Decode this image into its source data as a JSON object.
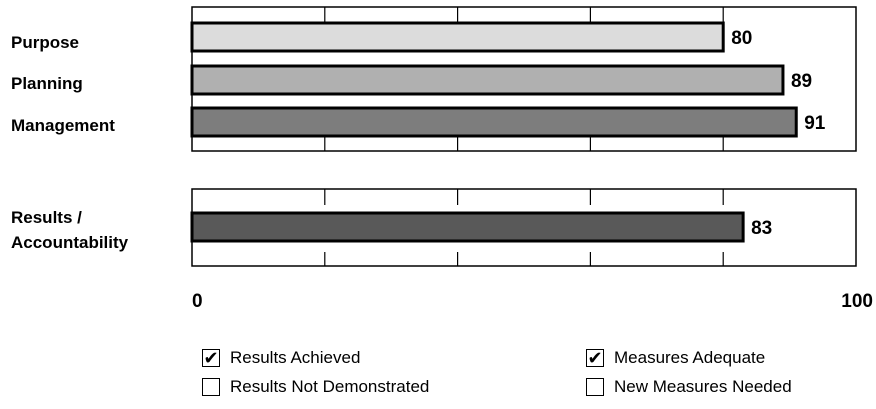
{
  "chart_data": {
    "type": "bar",
    "orientation": "horizontal",
    "xlim": [
      0,
      100
    ],
    "grid": true,
    "tick_labels": [
      "0",
      "100"
    ],
    "groups": [
      {
        "categories": [
          "Purpose",
          "Planning",
          "Management"
        ],
        "values": [
          80,
          89,
          91
        ],
        "colors": [
          "#dcdcdc",
          "#b0b0b0",
          "#7d7d7d"
        ]
      },
      {
        "categories": [
          "Results / Accountability"
        ],
        "category_lines": [
          "Results /",
          "Accountability"
        ],
        "values": [
          83
        ],
        "colors": [
          "#595959"
        ]
      }
    ]
  },
  "legend": [
    {
      "label": "Results Achieved",
      "checked": true,
      "check_icon": "checkmark-icon"
    },
    {
      "label": "Measures Adequate",
      "checked": true,
      "check_icon": "checkmark-icon"
    },
    {
      "label": "Results Not Demonstrated",
      "checked": false
    },
    {
      "label": "New Measures Needed",
      "checked": false
    }
  ]
}
